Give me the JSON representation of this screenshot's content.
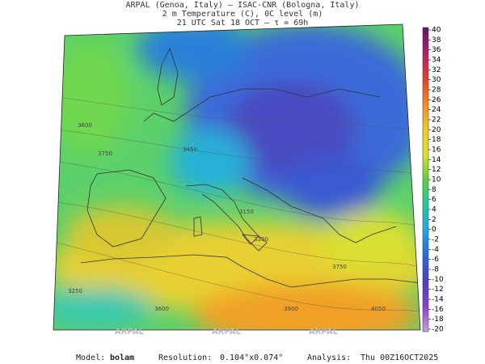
{
  "header": {
    "line1": "ARPAL (Genoa, Italy)  –  ISAC-CNR (Bologna, Italy)",
    "line2": "2 m Temperature (C), 0C level (m)",
    "line3": "21 UTC Sat 18 OCT  –  τ = 69h"
  },
  "colorbar": {
    "ticks": [
      40,
      38,
      36,
      34,
      32,
      30,
      28,
      26,
      24,
      22,
      20,
      18,
      16,
      14,
      12,
      10,
      8,
      6,
      4,
      2,
      0,
      -2,
      -4,
      -6,
      -8,
      -10,
      -12,
      -14,
      -16,
      -18,
      -20
    ],
    "colors": [
      "#5a1a6e",
      "#b0206a",
      "#e0402a",
      "#f08a20",
      "#f0c830",
      "#d8e030",
      "#60d040",
      "#20c8a0",
      "#20a8e0",
      "#2a6ad8",
      "#4a40c0",
      "#8a40c8",
      "#c8a0e0"
    ]
  },
  "map_labels": [
    "3450",
    "3750",
    "3600",
    "3150",
    "3300",
    "3750",
    "3900",
    "4050",
    "3600",
    "3250"
  ],
  "watermark": "ARPAL",
  "footer": {
    "model_label": "Model:",
    "model": "bolam",
    "resolution_label": "Resolution:",
    "resolution": "0.104°x0.074°",
    "analysis_label": "Analysis:",
    "analysis": "Thu 00Z16OCT2025"
  }
}
